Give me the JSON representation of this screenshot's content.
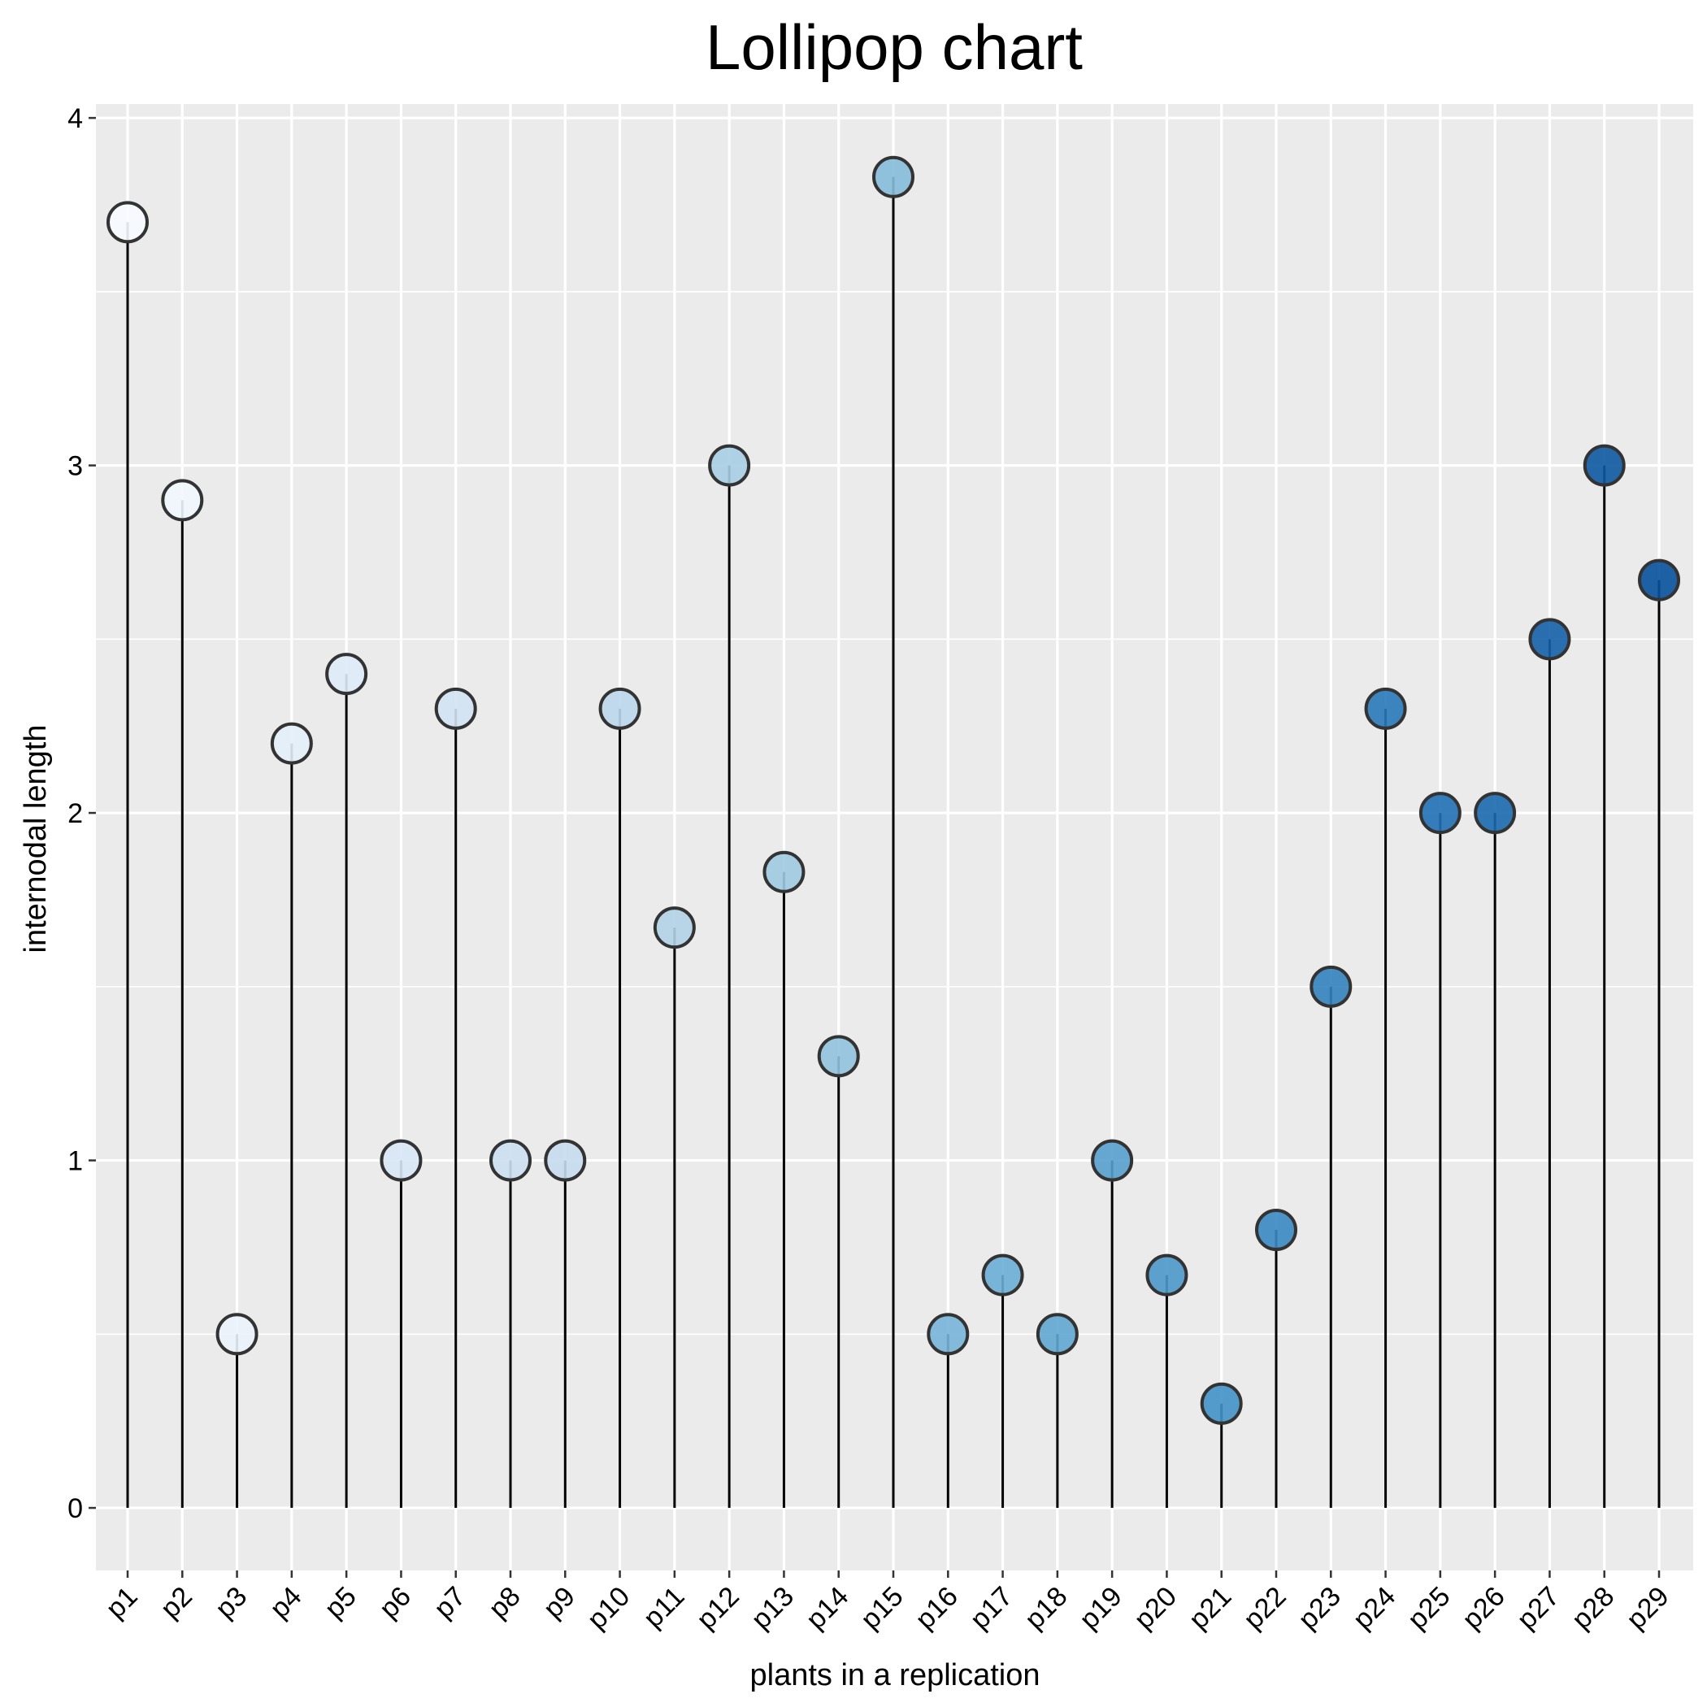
{
  "chart_data": {
    "type": "lollipop",
    "title": "Lollipop chart",
    "xlabel": "plants in a replication",
    "ylabel": "internodal length",
    "ylim": [
      -0.18,
      4.04
    ],
    "yticks": [
      "0",
      "1",
      "2",
      "3",
      "4"
    ],
    "grid": true,
    "legend": "none",
    "colors": {
      "panel_bg": "#EBEBEB",
      "grid_line": "#FFFFFF",
      "stem": "#000000",
      "point_stroke": "#333333",
      "gradient_start": "#F7FBFF",
      "gradient_end": "#08519C"
    },
    "categories": [
      "p1",
      "p2",
      "p3",
      "p4",
      "p5",
      "p6",
      "p7",
      "p8",
      "p9",
      "p10",
      "p11",
      "p12",
      "p13",
      "p14",
      "p15",
      "p16",
      "p17",
      "p18",
      "p19",
      "p20",
      "p21",
      "p22",
      "p23",
      "p24",
      "p25",
      "p26",
      "p27",
      "p28",
      "p29"
    ],
    "values": [
      3.7,
      2.9,
      0.5,
      2.2,
      2.4,
      1.0,
      2.3,
      1.0,
      1.0,
      2.3,
      1.67,
      3.0,
      1.83,
      1.3,
      3.83,
      0.5,
      0.67,
      0.5,
      1.0,
      0.67,
      0.3,
      0.8,
      1.5,
      2.3,
      2.0,
      2.0,
      2.5,
      3.0,
      2.67
    ]
  }
}
